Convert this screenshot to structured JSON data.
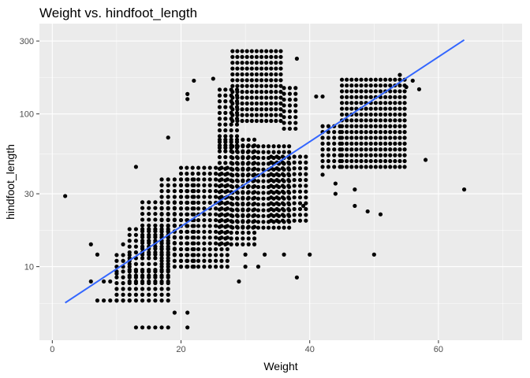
{
  "chart_data": {
    "type": "scatter",
    "title": "Weight vs. hindfoot_length",
    "xlabel": "Weight",
    "ylabel": "hindfoot_length",
    "x_scale": "linear",
    "y_scale": "log10",
    "xlim": [
      -2,
      73
    ],
    "ylim": [
      3.3,
      390
    ],
    "x_ticks": [
      0,
      20,
      40,
      60
    ],
    "x_tick_labels": [
      "0",
      "20",
      "40",
      "60"
    ],
    "y_ticks": [
      10,
      30,
      100,
      300
    ],
    "y_tick_labels": [
      "10",
      "30",
      "100",
      "300"
    ],
    "grid": true,
    "background_color": "#ebebeb",
    "point_color": "#000000",
    "trend_color": "#3366ff",
    "clusters": [
      {
        "x_range": [
          13,
          18
        ],
        "step": 1,
        "y_min": 4,
        "y_max": 4
      },
      {
        "x_range": [
          7,
          12
        ],
        "step": 1,
        "y_min": 6,
        "y_max": 6
      },
      {
        "x_range": [
          10,
          18
        ],
        "step": 1,
        "y_min": 6,
        "y_max": 10
      },
      {
        "x_range": [
          10,
          12
        ],
        "step": 1,
        "y_min": 10,
        "y_max": 12
      },
      {
        "x_range": [
          12,
          18
        ],
        "step": 1,
        "y_min": 8,
        "y_max": 18
      },
      {
        "x_range": [
          14,
          19
        ],
        "step": 1,
        "y_min": 12,
        "y_max": 28
      },
      {
        "x_range": [
          17,
          22
        ],
        "step": 1,
        "y_min": 10,
        "y_max": 38
      },
      {
        "x_range": [
          20,
          28
        ],
        "step": 0.9,
        "y_min": 10,
        "y_max": 45
      },
      {
        "x_range": [
          26,
          32
        ],
        "step": 0.9,
        "y_min": 14,
        "y_max": 70
      },
      {
        "x_range": [
          28,
          37
        ],
        "step": 0.8,
        "y_min": 18,
        "y_max": 65
      },
      {
        "x_range": [
          34,
          40
        ],
        "step": 0.9,
        "y_min": 20,
        "y_max": 55
      },
      {
        "x_range": [
          28,
          36
        ],
        "step": 0.75,
        "y_min": 90,
        "y_max": 260
      },
      {
        "x_range": [
          26,
          29
        ],
        "step": 0.9,
        "y_min": 60,
        "y_max": 150
      },
      {
        "x_range": [
          36,
          38
        ],
        "step": 0.9,
        "y_min": 80,
        "y_max": 150
      },
      {
        "x_range": [
          45,
          55
        ],
        "step": 0.75,
        "y_min": 45,
        "y_max": 175
      },
      {
        "x_range": [
          42,
          45
        ],
        "step": 0.9,
        "y_min": 45,
        "y_max": 90
      }
    ],
    "extra_points": [
      [
        2,
        29
      ],
      [
        6,
        8
      ],
      [
        6,
        14
      ],
      [
        7,
        12
      ],
      [
        8,
        8
      ],
      [
        9,
        8
      ],
      [
        10,
        9
      ],
      [
        11,
        14
      ],
      [
        13,
        45
      ],
      [
        18,
        70
      ],
      [
        19,
        5
      ],
      [
        21,
        4
      ],
      [
        21,
        5
      ],
      [
        21,
        125
      ],
      [
        21,
        135
      ],
      [
        22,
        165
      ],
      [
        25,
        170
      ],
      [
        29,
        8
      ],
      [
        30,
        10
      ],
      [
        30,
        12
      ],
      [
        32,
        10
      ],
      [
        33,
        12
      ],
      [
        36,
        12
      ],
      [
        38,
        8.5
      ],
      [
        38,
        230
      ],
      [
        39,
        25
      ],
      [
        40,
        12
      ],
      [
        41,
        130
      ],
      [
        42,
        130
      ],
      [
        42,
        40
      ],
      [
        44,
        30
      ],
      [
        44,
        35
      ],
      [
        47,
        32
      ],
      [
        47,
        25
      ],
      [
        49,
        23
      ],
      [
        50,
        12
      ],
      [
        51,
        22
      ],
      [
        54,
        180
      ],
      [
        55,
        150
      ],
      [
        56,
        165
      ],
      [
        57,
        145
      ],
      [
        58,
        50
      ],
      [
        64,
        32
      ]
    ],
    "trend_line": {
      "x": [
        2,
        64
      ],
      "y": [
        5.8,
        305
      ]
    }
  }
}
